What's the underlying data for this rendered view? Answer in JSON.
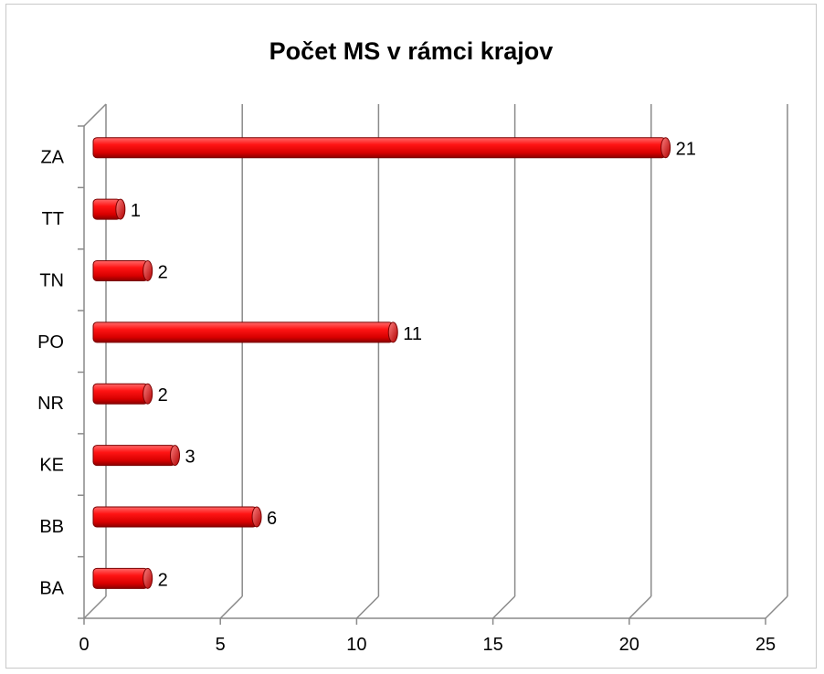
{
  "chart_data": {
    "type": "bar",
    "orientation": "horizontal",
    "style": "3d-cylinder",
    "title": "Počet MS v rámci krajov",
    "categories": [
      "BA",
      "BB",
      "KE",
      "NR",
      "PO",
      "TN",
      "TT",
      "ZA"
    ],
    "values": [
      2,
      6,
      3,
      2,
      11,
      2,
      1,
      21
    ],
    "xlim": [
      0,
      25
    ],
    "x_ticks": [
      0,
      5,
      10,
      15,
      20,
      25
    ],
    "grid": true,
    "legend": "none",
    "bar_color": "#e60000",
    "data_labels": true
  }
}
